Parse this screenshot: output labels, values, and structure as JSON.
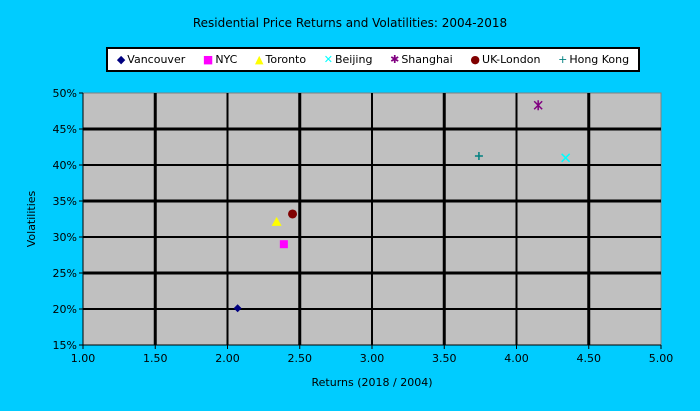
{
  "chart_data": {
    "type": "scatter",
    "title": "Residential Price Returns and Volatilities: 2004-2018",
    "xlabel": "Returns (2018 / 2004)",
    "ylabel": "Volatilities",
    "xlim": [
      1.0,
      5.0
    ],
    "ylim": [
      15,
      50
    ],
    "xticks": [
      "1.00",
      "1.50",
      "2.00",
      "2.50",
      "3.00",
      "3.50",
      "4.00",
      "4.50",
      "5.00"
    ],
    "yticks": [
      "15%",
      "20%",
      "25%",
      "30%",
      "35%",
      "40%",
      "45%",
      "50%"
    ],
    "grid": true,
    "legend_position": "top",
    "series": [
      {
        "name": "Vancouver",
        "x": 2.07,
        "y": 20.1,
        "color": "#000080",
        "marker": "◆"
      },
      {
        "name": "NYC",
        "x": 2.39,
        "y": 29.0,
        "color": "#ff00ff",
        "marker": "■"
      },
      {
        "name": "Toronto",
        "x": 2.34,
        "y": 32.1,
        "color": "#ffff00",
        "marker": "▲"
      },
      {
        "name": "Beijing",
        "x": 4.34,
        "y": 41.0,
        "color": "#00ffff",
        "marker": "✕"
      },
      {
        "name": "Shanghai",
        "x": 4.15,
        "y": 48.3,
        "color": "#800080",
        "marker": "✱"
      },
      {
        "name": "UK-London",
        "x": 2.45,
        "y": 33.2,
        "color": "#800000",
        "marker": "●"
      },
      {
        "name": "Hong Kong",
        "x": 3.74,
        "y": 41.25,
        "color": "#008080",
        "marker": "+"
      }
    ]
  }
}
